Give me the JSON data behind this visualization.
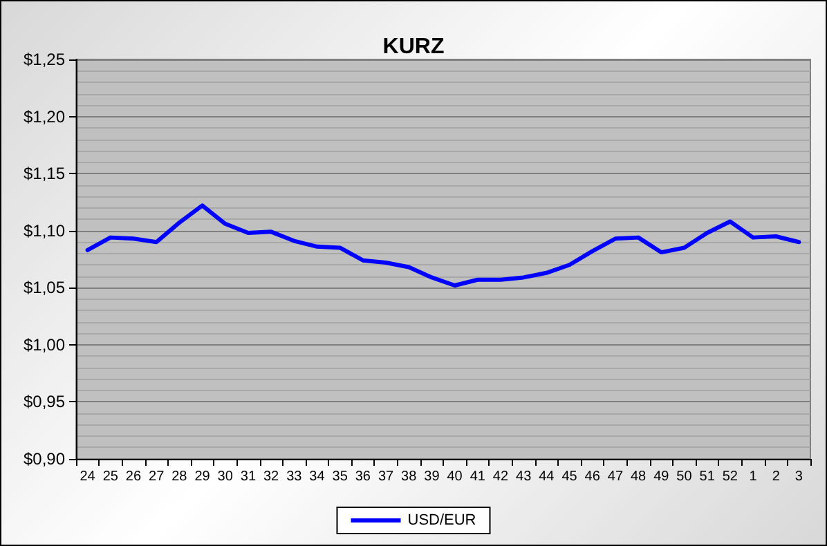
{
  "chart_data": {
    "type": "line",
    "title": "KURZ",
    "categories": [
      "24",
      "25",
      "26",
      "27",
      "28",
      "29",
      "30",
      "31",
      "32",
      "33",
      "34",
      "35",
      "36",
      "37",
      "38",
      "39",
      "40",
      "41",
      "42",
      "43",
      "44",
      "45",
      "46",
      "47",
      "48",
      "49",
      "50",
      "51",
      "52",
      "1",
      "2",
      "3"
    ],
    "series": [
      {
        "name": "USD/EUR",
        "color": "#0000ff",
        "values": [
          1.083,
          1.094,
          1.093,
          1.09,
          1.107,
          1.122,
          1.106,
          1.098,
          1.099,
          1.091,
          1.086,
          1.085,
          1.074,
          1.072,
          1.068,
          1.059,
          1.052,
          1.057,
          1.057,
          1.059,
          1.063,
          1.07,
          1.082,
          1.093,
          1.094,
          1.081,
          1.085,
          1.098,
          1.108,
          1.094,
          1.095,
          1.09
        ]
      }
    ],
    "ylim": [
      0.9,
      1.25
    ],
    "yticks": [
      {
        "value": 0.9,
        "label": "$0,90"
      },
      {
        "value": 0.95,
        "label": "$0,95"
      },
      {
        "value": 1.0,
        "label": "$1,00"
      },
      {
        "value": 1.05,
        "label": "$1,05"
      },
      {
        "value": 1.1,
        "label": "$1,10"
      },
      {
        "value": 1.15,
        "label": "$1,15"
      },
      {
        "value": 1.2,
        "label": "$1,20"
      },
      {
        "value": 1.25,
        "label": "$1,25"
      }
    ],
    "grid": "y",
    "legend": "bottom",
    "marker": "none",
    "line_style": "solid"
  }
}
